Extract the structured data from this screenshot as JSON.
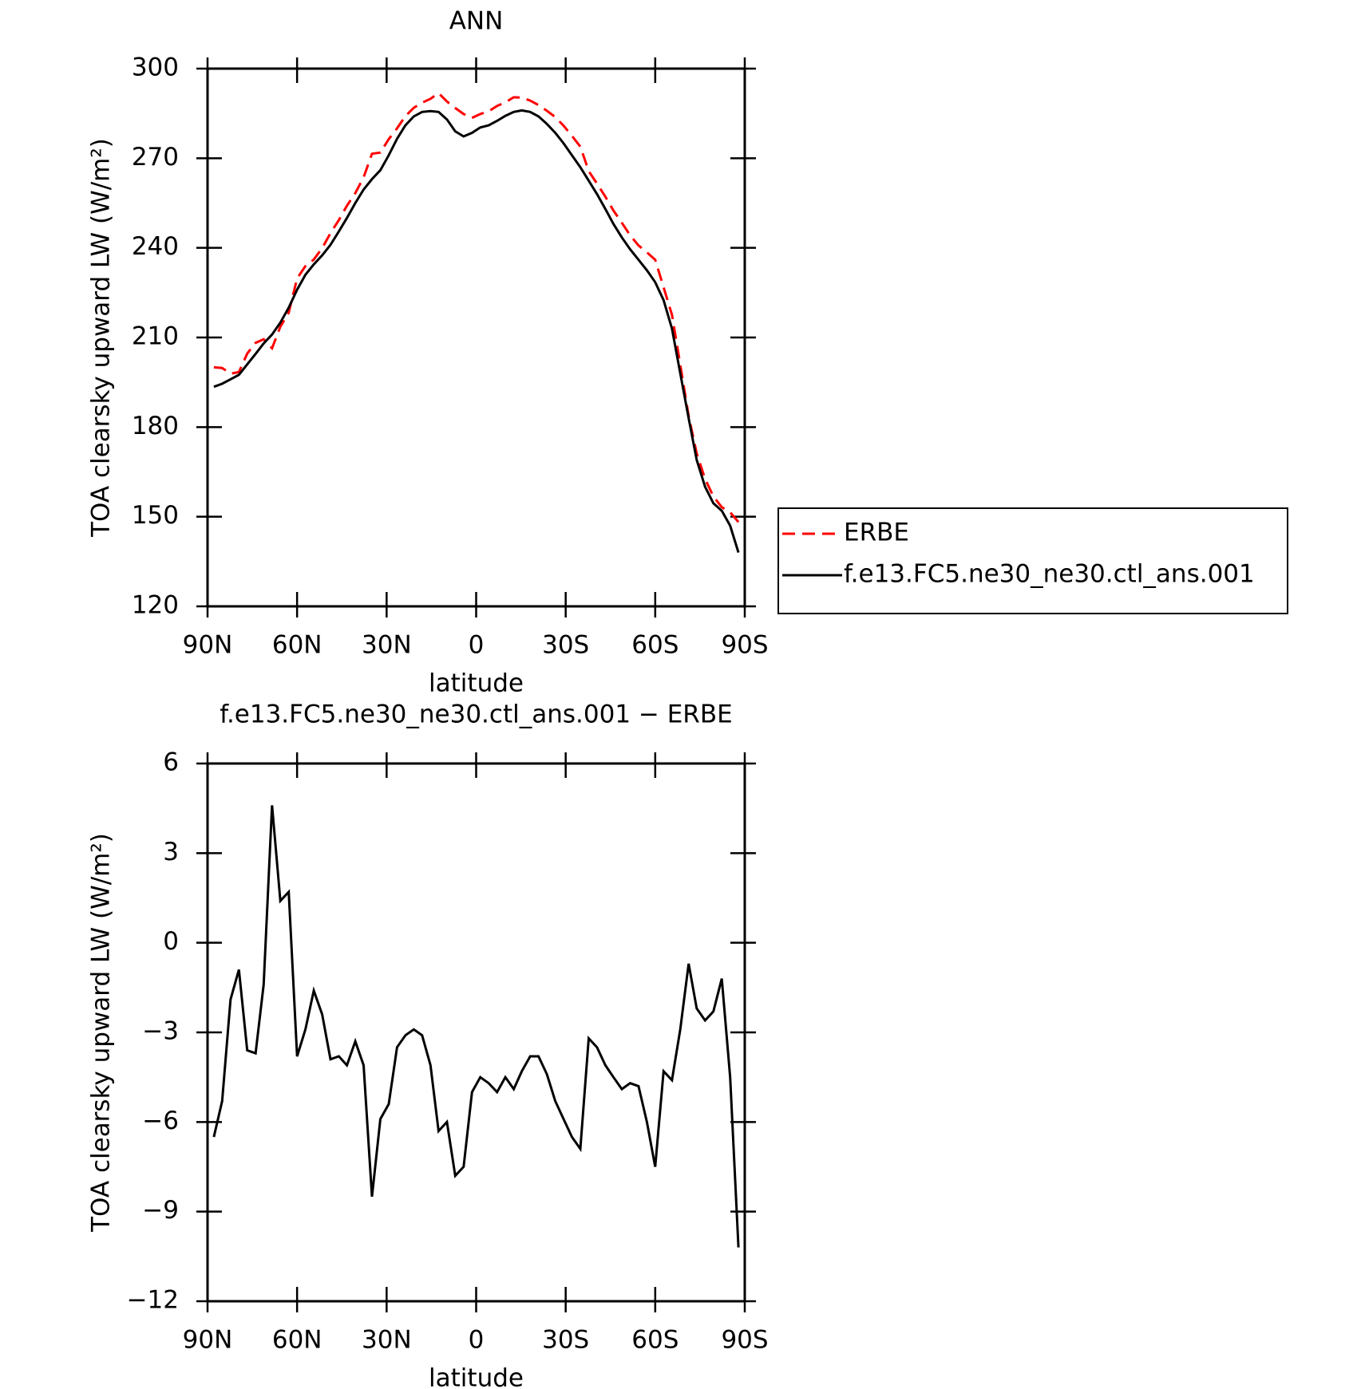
{
  "chart_data": [
    {
      "type": "line",
      "title": "ANN",
      "xlabel": "latitude",
      "ylabel": "TOA clearsky upward LW (W/m²)",
      "x": [
        87.9,
        85.1,
        82.3,
        79.5,
        76.7,
        73.9,
        71.2,
        68.4,
        65.6,
        62.8,
        60.0,
        57.2,
        54.4,
        51.6,
        48.8,
        46.0,
        43.3,
        40.5,
        37.7,
        34.9,
        32.1,
        29.3,
        26.5,
        23.7,
        20.9,
        18.1,
        15.3,
        12.6,
        9.8,
        7.0,
        4.2,
        1.4,
        -1.4,
        -4.2,
        -7.0,
        -9.8,
        -12.6,
        -15.3,
        -18.1,
        -20.9,
        -23.7,
        -26.5,
        -29.3,
        -32.1,
        -34.9,
        -37.7,
        -40.5,
        -43.3,
        -46.0,
        -48.8,
        -51.6,
        -54.4,
        -57.2,
        -60.0,
        -62.8,
        -65.6,
        -68.4,
        -71.2,
        -73.9,
        -76.7,
        -79.5,
        -82.3,
        -85.1,
        -87.9
      ],
      "series": [
        {
          "name": "ERBE",
          "color": "#ff0000",
          "style": "dashed",
          "values": [
            200,
            199.8,
            197.9,
            198.4,
            204.6,
            208.2,
            209.4,
            206.4,
            213.6,
            218.3,
            229.8,
            233.9,
            236.1,
            239.9,
            244.9,
            249.3,
            254.1,
            258.3,
            263.6,
            271.5,
            271.9,
            276.4,
            280,
            284.1,
            286.9,
            288.6,
            289.9,
            291.8,
            289,
            286.8,
            284.8,
            283.5,
            284.8,
            285.7,
            287.5,
            288.7,
            290.4,
            290.3,
            289.3,
            287.8,
            285.9,
            283.8,
            280.9,
            277.5,
            273.9,
            265.7,
            261.5,
            257.1,
            252.5,
            248.4,
            244.2,
            240.8,
            238.5,
            236,
            226.8,
            217.6,
            200.9,
            183.7,
            171.2,
            162.6,
            156.8,
            153.2,
            151.5,
            148.2
          ]
        },
        {
          "name": "f.e13.FC5.ne30_ne30.ctl_ans.001",
          "color": "#000000",
          "style": "solid",
          "values": [
            193.5,
            194.5,
            196,
            197.5,
            201,
            204.5,
            208,
            211,
            215,
            220,
            226,
            231,
            234.5,
            237.5,
            241,
            245.5,
            250,
            255,
            259.5,
            263,
            266,
            271,
            276.5,
            281,
            284,
            285.5,
            285.8,
            285.5,
            283,
            279,
            277.3,
            278.5,
            280.3,
            281,
            282.5,
            284.2,
            285.5,
            286,
            285.5,
            284,
            281.5,
            278.5,
            275,
            271,
            267,
            262.5,
            258,
            253,
            248,
            243.5,
            239.5,
            236,
            232.5,
            228.5,
            222.5,
            213,
            198,
            183,
            169,
            160,
            154.5,
            152,
            147,
            138
          ]
        }
      ],
      "xlim": [
        90,
        -90
      ],
      "xticks": [
        {
          "value": 90,
          "label": "90N"
        },
        {
          "value": 60,
          "label": "60N"
        },
        {
          "value": 30,
          "label": "30N"
        },
        0,
        {
          "value": -30,
          "label": "30S"
        },
        {
          "value": -60,
          "label": "60S"
        },
        {
          "value": -90,
          "label": "90S"
        }
      ],
      "ylim": [
        120,
        300
      ],
      "yticks": [
        120,
        150,
        180,
        210,
        240,
        270,
        300
      ],
      "legend": "right"
    },
    {
      "type": "line",
      "title": "f.e13.FC5.ne30_ne30.ctl_ans.001 − ERBE",
      "xlabel": "latitude",
      "ylabel": "TOA clearsky upward LW (W/m²)",
      "x": [
        87.9,
        85.1,
        82.3,
        79.5,
        76.7,
        73.9,
        71.2,
        68.4,
        65.6,
        62.8,
        60.0,
        57.2,
        54.4,
        51.6,
        48.8,
        46.0,
        43.3,
        40.5,
        37.7,
        34.9,
        32.1,
        29.3,
        26.5,
        23.7,
        20.9,
        18.1,
        15.3,
        12.6,
        9.8,
        7.0,
        4.2,
        1.4,
        -1.4,
        -4.2,
        -7.0,
        -9.8,
        -12.6,
        -15.3,
        -18.1,
        -20.9,
        -23.7,
        -26.5,
        -29.3,
        -32.1,
        -34.9,
        -37.7,
        -40.5,
        -43.3,
        -46.0,
        -48.8,
        -51.6,
        -54.4,
        -57.2,
        -60.0,
        -62.8,
        -65.6,
        -68.4,
        -71.2,
        -73.9,
        -76.7,
        -79.5,
        -82.3,
        -85.1,
        -87.9
      ],
      "values": [
        -6.5,
        -5.3,
        -1.9,
        -0.9,
        -3.6,
        -3.7,
        -1.4,
        4.6,
        1.4,
        1.7,
        -3.8,
        -2.9,
        -1.6,
        -2.4,
        -3.9,
        -3.8,
        -4.1,
        -3.3,
        -4.1,
        -8.5,
        -5.9,
        -5.4,
        -3.5,
        -3.1,
        -2.9,
        -3.1,
        -4.1,
        -6.3,
        -6.0,
        -7.8,
        -7.5,
        -5.0,
        -4.5,
        -4.7,
        -5.0,
        -4.5,
        -4.9,
        -4.3,
        -3.8,
        -3.8,
        -4.4,
        -5.3,
        -5.9,
        -6.5,
        -6.9,
        -3.2,
        -3.5,
        -4.1,
        -4.5,
        -4.9,
        -4.7,
        -4.8,
        -6.0,
        -7.5,
        -4.3,
        -4.6,
        -2.9,
        -0.7,
        -2.2,
        -2.6,
        -2.3,
        -1.2,
        -4.5,
        -10.2
      ],
      "color": "#000000",
      "xlim": [
        90,
        -90
      ],
      "xticks": [
        {
          "value": 90,
          "label": "90N"
        },
        {
          "value": 60,
          "label": "60N"
        },
        {
          "value": 30,
          "label": "30N"
        },
        0,
        {
          "value": -30,
          "label": "30S"
        },
        {
          "value": -60,
          "label": "60S"
        },
        {
          "value": -90,
          "label": "90S"
        }
      ],
      "ylim": [
        -12,
        6
      ],
      "yticks": [
        {
          "value": -12,
          "label": "−12"
        },
        {
          "value": -9,
          "label": "−9"
        },
        {
          "value": -6,
          "label": "−6"
        },
        {
          "value": -3,
          "label": "−3"
        },
        0,
        3,
        6
      ]
    }
  ]
}
